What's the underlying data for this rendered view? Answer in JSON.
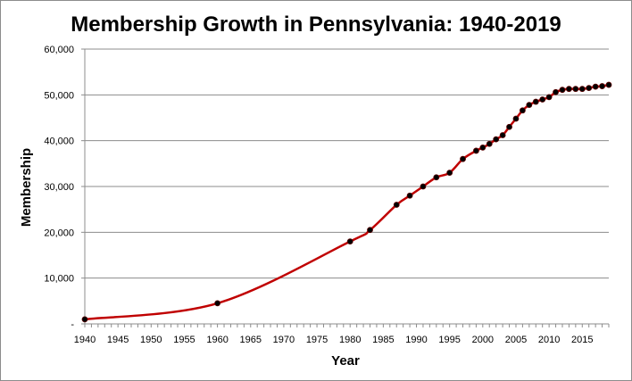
{
  "chart_data": {
    "type": "line",
    "title": "Membership Growth in Pennsylvania: 1940-2019",
    "xlabel": "Year",
    "ylabel": "Membership",
    "xlim": [
      1940,
      2019
    ],
    "ylim": [
      0,
      60000
    ],
    "x_ticks": [
      "1940",
      "1945",
      "1950",
      "1955",
      "1960",
      "1965",
      "1970",
      "1975",
      "1980",
      "1985",
      "1990",
      "1995",
      "2000",
      "2005",
      "2010",
      "2015"
    ],
    "y_ticks": [
      "-",
      "10,000",
      "20,000",
      "30,000",
      "40,000",
      "50,000",
      "60,000"
    ],
    "grid": "horizontal",
    "legend": "none",
    "line_color": "#c00000",
    "marker_color": "#000000",
    "series": [
      {
        "x": [
          1940,
          1960,
          1980,
          1983,
          1987,
          1989,
          1991,
          1993,
          1995,
          1997,
          1999,
          2000,
          2001,
          2002,
          2003,
          2004,
          2005,
          2006,
          2007,
          2008,
          2009,
          2010,
          2011,
          2012,
          2013,
          2014,
          2015,
          2016,
          2017,
          2018,
          2019
        ],
        "values": [
          1000,
          4500,
          18000,
          20500,
          26000,
          28000,
          30000,
          32000,
          33000,
          36000,
          37800,
          38500,
          39300,
          40300,
          41200,
          43000,
          44800,
          46600,
          47800,
          48500,
          49000,
          49500,
          50600,
          51100,
          51300,
          51300,
          51300,
          51500,
          51800,
          51900,
          52200
        ]
      }
    ]
  }
}
